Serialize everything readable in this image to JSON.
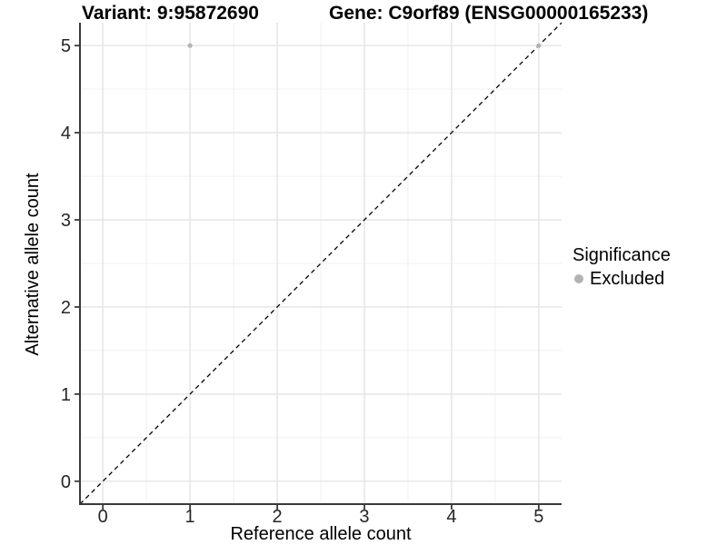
{
  "chart_data": {
    "type": "scatter",
    "titles": {
      "left": "Variant: 9:95872690",
      "right": "Gene: C9orf89 (ENSG00000165233)"
    },
    "xlabel": "Reference allele count",
    "ylabel": "Alternative allele count",
    "x_ticks": [
      0,
      1,
      2,
      3,
      4,
      5
    ],
    "y_ticks": [
      0,
      1,
      2,
      3,
      4,
      5
    ],
    "xlim": [
      -0.2625,
      5.2625
    ],
    "ylim": [
      -0.2625,
      5.2625
    ],
    "grid": "major+minor",
    "minor_grid_step": 0.5,
    "points": [
      {
        "x": 1,
        "y": 5,
        "significance": "Excluded"
      },
      {
        "x": 5,
        "y": 5,
        "significance": "Excluded"
      }
    ],
    "reference_line": {
      "equation": "y = x",
      "style": "dashed",
      "color": "#000000"
    },
    "legend": {
      "title": "Significance",
      "position": "right",
      "entries": [
        {
          "label": "Excluded",
          "color": "#b3b3b3"
        }
      ]
    },
    "colors": {
      "point": "#b3b3b3",
      "major_grid": "#e4e4e4",
      "minor_grid": "#f0f0f0",
      "axis_line": "#3a3a3a",
      "tick_text": "#262626"
    }
  }
}
